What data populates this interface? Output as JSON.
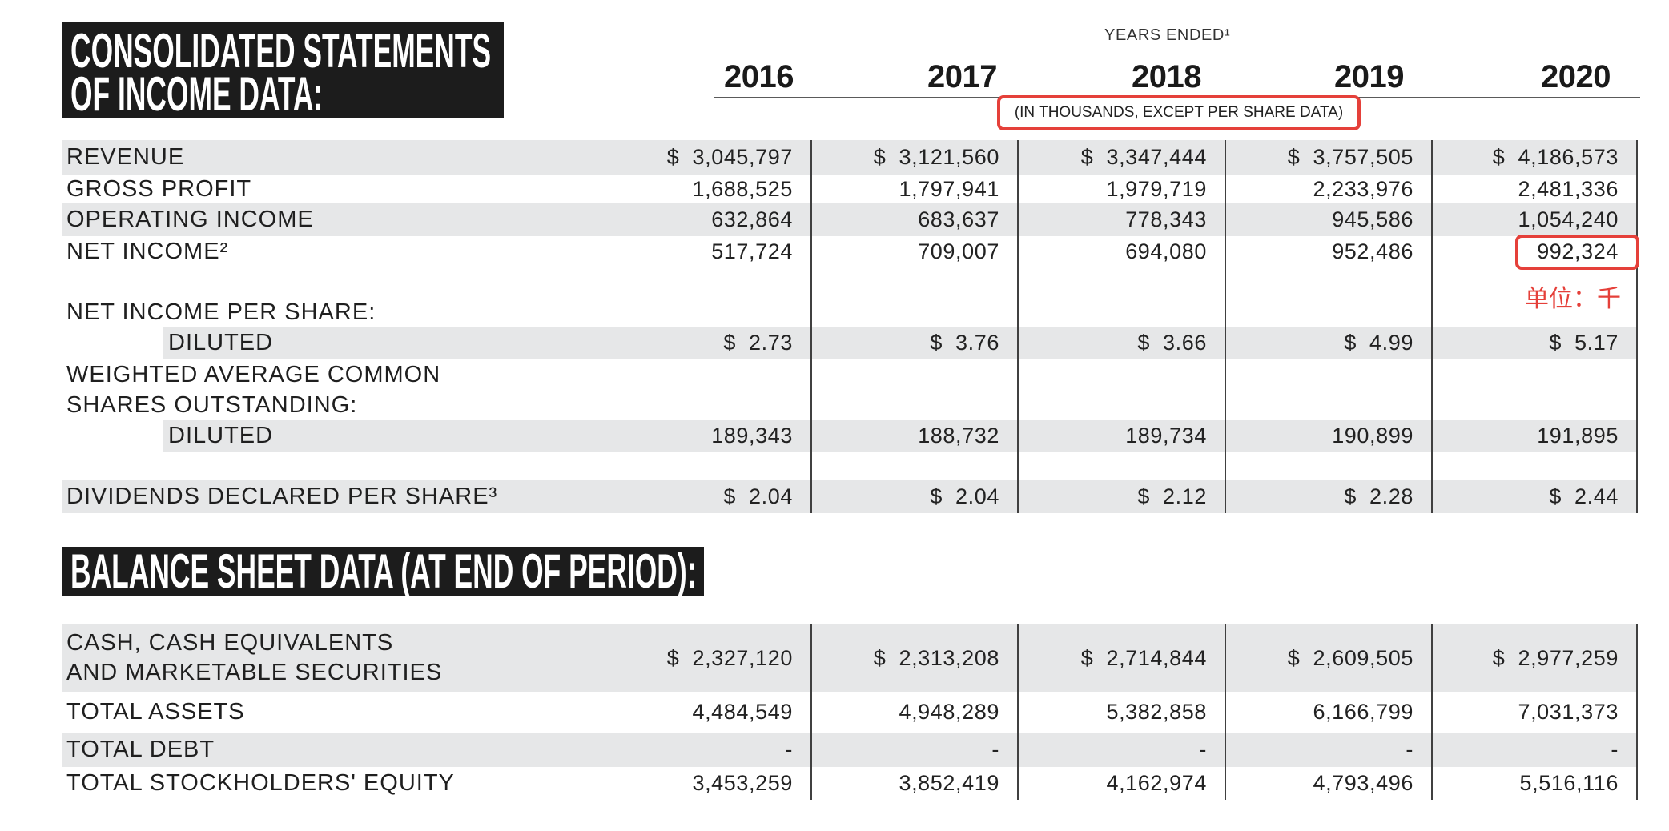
{
  "income_title": {
    "line1": "CONSOLIDATED STATEMENTS",
    "line2": "OF INCOME DATA:"
  },
  "years_ended": "YEARS ENDED¹",
  "years": [
    "2016",
    "2017",
    "2018",
    "2019",
    "2020"
  ],
  "units_note": "(IN THOUSANDS, EXCEPT PER SHARE DATA)",
  "income_rows": [
    {
      "label": "REVENUE",
      "values": [
        "$ 3,045,797",
        "$ 3,121,560",
        "$ 3,347,444",
        "$ 3,757,505",
        "$ 4,186,573"
      ]
    },
    {
      "label": "GROSS PROFIT",
      "values": [
        "1,688,525",
        "1,797,941",
        "1,979,719",
        "2,233,976",
        "2,481,336"
      ]
    },
    {
      "label": "OPERATING INCOME",
      "values": [
        "632,864",
        "683,637",
        "778,343",
        "945,586",
        "1,054,240"
      ]
    },
    {
      "label": "NET INCOME²",
      "values": [
        "517,724",
        "709,007",
        "694,080",
        "952,486",
        "992,324"
      ]
    },
    {
      "label": "NET INCOME PER SHARE:"
    },
    {
      "label": "DILUTED",
      "values": [
        "$ 2.73",
        "$ 3.76",
        "$ 3.66",
        "$ 4.99",
        "$ 5.17"
      ]
    },
    {
      "label": "WEIGHTED AVERAGE COMMON"
    },
    {
      "label": "SHARES OUTSTANDING:"
    },
    {
      "label": "DILUTED",
      "values": [
        "189,343",
        "188,732",
        "189,734",
        "190,899",
        "191,895"
      ]
    },
    {
      "label": "DIVIDENDS DECLARED PER SHARE³",
      "values": [
        "$ 2.04",
        "$ 2.04",
        "$ 2.12",
        "$ 2.28",
        "$ 2.44"
      ]
    }
  ],
  "balance_title": "BALANCE SHEET DATA (AT END OF PERIOD):",
  "balance_rows": [
    {
      "label_lines": [
        "CASH, CASH EQUIVALENTS",
        "AND MARKETABLE SECURITIES"
      ],
      "values": [
        "$ 2,327,120",
        "$ 2,313,208",
        "$ 2,714,844",
        "$ 2,609,505",
        "$ 2,977,259"
      ]
    },
    {
      "label": "TOTAL ASSETS",
      "values": [
        "4,484,549",
        "4,948,289",
        "5,382,858",
        "6,166,799",
        "7,031,373"
      ]
    },
    {
      "label": "TOTAL DEBT",
      "values": [
        "-",
        "-",
        "-",
        "-",
        "-"
      ]
    },
    {
      "label": "TOTAL STOCKHOLDERS' EQUITY",
      "values": [
        "3,453,259",
        "3,852,419",
        "4,162,974",
        "4,793,496",
        "5,516,116"
      ]
    }
  ],
  "annotation": {
    "note": "单位：千"
  },
  "colors": {
    "annotation": "#e5403a",
    "row_band": "#e6e7e8",
    "title_background": "#1c1c1c"
  }
}
